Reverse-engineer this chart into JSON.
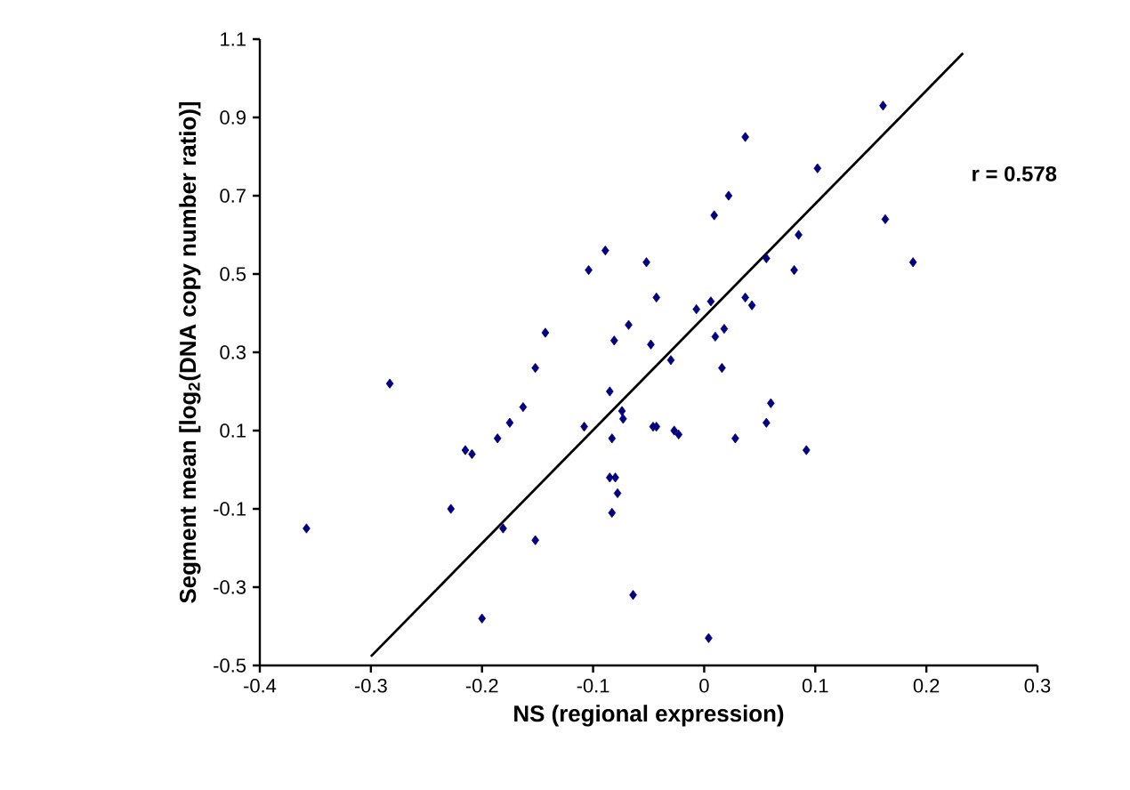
{
  "chart_data": {
    "type": "scatter",
    "xlabel": "NS (regional expression)",
    "ylabel": "Segment mean [log$_{2}$(DNA copy number ratio)]",
    "annotations": [
      "r = 0.578"
    ],
    "xlim": [
      -0.4,
      0.3
    ],
    "xticks": [
      -0.4,
      -0.3,
      -0.2,
      -0.1,
      0,
      0.1,
      0.2,
      0.3
    ],
    "ylim": [
      -0.5,
      1.1
    ],
    "yticks": [
      -0.5,
      -0.3,
      -0.1,
      0.1,
      0.3,
      0.5,
      0.7,
      0.9,
      1.1
    ],
    "series": [
      {
        "color": "#000080",
        "marker": "diamond",
        "x": [
          -0.143,
          -0.104,
          -0.089,
          -0.052,
          -0.043,
          -0.068,
          -0.081,
          -0.048,
          0.161,
          0.037,
          0.102,
          0.022,
          0.009,
          0.163,
          0.085,
          0.056,
          0.188,
          0.081,
          0.037,
          0.043,
          0.006,
          -0.007,
          0.018,
          0.01,
          -0.358,
          -0.283,
          -0.228,
          -0.215,
          -0.209,
          -0.186,
          -0.175,
          -0.163,
          -0.152,
          -0.181,
          -0.152,
          -0.2,
          -0.085,
          -0.074,
          -0.073,
          -0.108,
          -0.083,
          -0.085,
          -0.08,
          -0.078,
          -0.083,
          -0.064,
          -0.046,
          -0.03,
          0.016,
          -0.043,
          -0.027,
          -0.023,
          0.028,
          0.056,
          0.06,
          0.092,
          0.004
        ],
        "values": [
          0.35,
          0.51,
          0.56,
          0.53,
          0.44,
          0.37,
          0.33,
          0.32,
          0.93,
          0.85,
          0.77,
          0.7,
          0.65,
          0.64,
          0.6,
          0.54,
          0.53,
          0.51,
          0.44,
          0.42,
          0.43,
          0.41,
          0.36,
          0.34,
          -0.15,
          0.22,
          -0.1,
          0.05,
          0.04,
          0.08,
          0.12,
          0.16,
          0.26,
          -0.15,
          -0.18,
          -0.38,
          0.2,
          0.15,
          0.13,
          0.11,
          0.08,
          -0.02,
          -0.02,
          -0.06,
          -0.11,
          -0.32,
          0.11,
          0.28,
          0.26,
          0.11,
          0.1,
          0.09,
          0.08,
          0.12,
          0.17,
          0.05,
          -0.43
        ]
      },
      {
        "type": "line",
        "marker": "none",
        "color": "#000000",
        "x": [
          -0.3,
          0.233
        ],
        "values": [
          -0.477,
          1.064
        ]
      }
    ]
  }
}
